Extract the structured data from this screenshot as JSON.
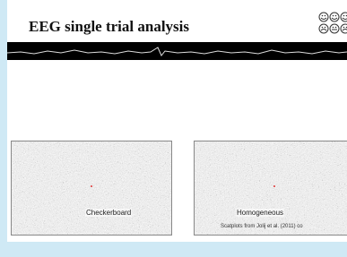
{
  "header": {
    "title": "EEG single trial analysis"
  },
  "panels": [
    {
      "label": "Checkerboard"
    },
    {
      "label": "Homogeneous"
    }
  ],
  "caption": "Scatplots from Jolij et al. (2011) co"
}
